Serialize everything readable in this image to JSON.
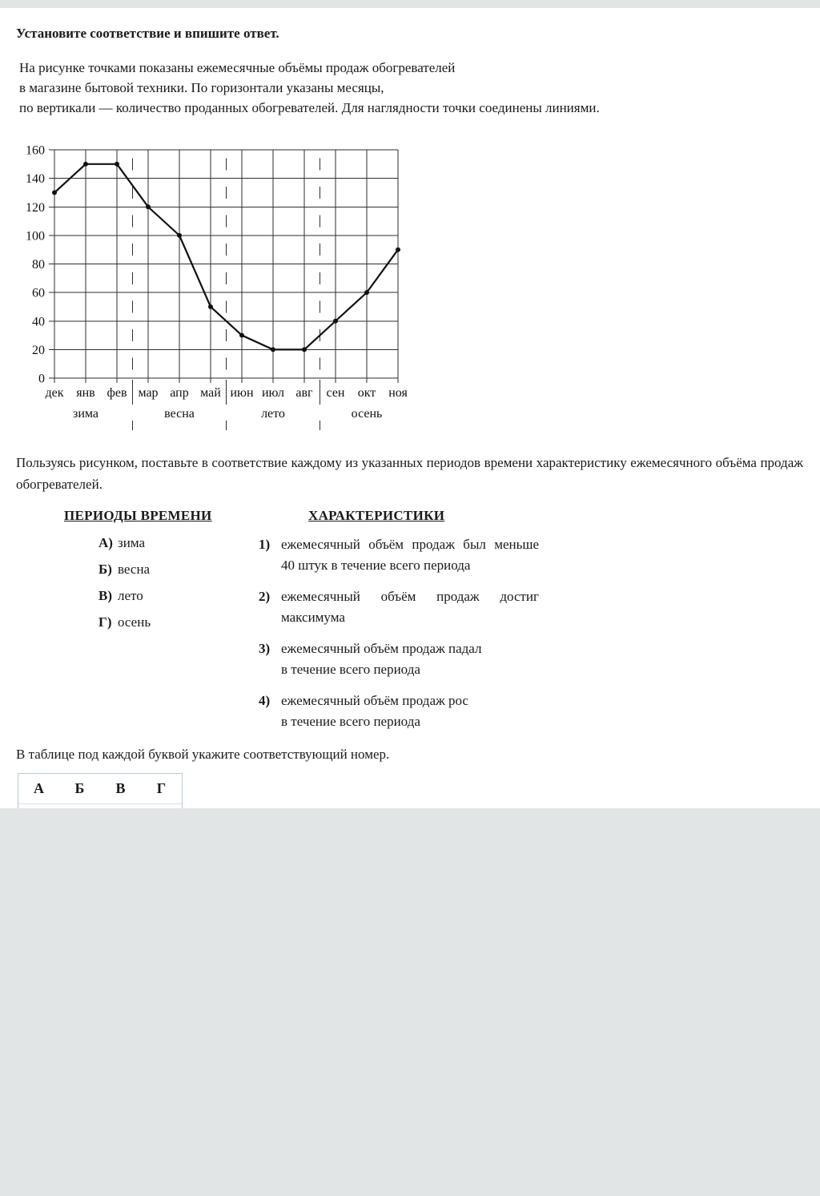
{
  "page": {
    "title": "Установите соответствие и впишите ответ.",
    "intro_lines": [
      "На рисунке точками показаны ежемесячные объёмы продаж обогревателей",
      "в магазине бытовой техники. По горизонтали указаны месяцы,",
      "по вертикали —  количество проданных обогревателей. Для наглядности точки соединены линиями."
    ],
    "task_text": "Пользуясь рисунком, поставьте в соответствие каждому из указанных периодов времени характеристику ежемесячного объёма продаж обогревателей.",
    "table_instruction": "В таблице под каждой буквой укажите соответствующий номер."
  },
  "match": {
    "left_header": "ПЕРИОДЫ ВРЕМЕНИ",
    "right_header": "ХАРАКТЕРИСТИКИ",
    "periods": [
      {
        "letter": "А)",
        "label": "зима"
      },
      {
        "letter": "Б)",
        "label": "весна"
      },
      {
        "letter": "В)",
        "label": "лето"
      },
      {
        "letter": "Г)",
        "label": "осень"
      }
    ],
    "characteristics": [
      {
        "number": "1)",
        "lines": [
          "ежемесячный объём продаж был меньше",
          "40 штук в течение всего периода"
        ]
      },
      {
        "number": "2)",
        "lines": [
          "ежемесячный объём продаж достиг",
          "максимума"
        ]
      },
      {
        "number": "3)",
        "lines": [
          "ежемесячный объём продаж падал",
          "в течение всего периода"
        ]
      },
      {
        "number": "4)",
        "lines": [
          "ежемесячный объём продаж рос",
          "в течение всего периода"
        ]
      }
    ]
  },
  "answer_table": {
    "columns": [
      "А",
      "Б",
      "В",
      "Г"
    ],
    "selects": [
      {
        "column": "А",
        "value": ""
      },
      {
        "column": "Б",
        "value": ""
      },
      {
        "column": "В",
        "value": ""
      },
      {
        "column": "Г",
        "value": ""
      }
    ]
  },
  "chart_data": {
    "type": "line",
    "title": "",
    "xlabel": "",
    "ylabel": "",
    "x": [
      "дек",
      "янв",
      "фев",
      "мар",
      "апр",
      "май",
      "июн",
      "июл",
      "авг",
      "сен",
      "окт",
      "ноя"
    ],
    "values": [
      130,
      150,
      150,
      120,
      100,
      50,
      30,
      20,
      20,
      40,
      60,
      90
    ],
    "ylim": [
      0,
      160
    ],
    "ytick_step": 20,
    "grid": true,
    "legend": "none",
    "seasons": [
      {
        "label": "зима",
        "start": 0,
        "end": 2
      },
      {
        "label": "весна",
        "start": 3,
        "end": 5
      },
      {
        "label": "лето",
        "start": 6,
        "end": 8
      },
      {
        "label": "осень",
        "start": 9,
        "end": 11
      }
    ]
  },
  "colors": {
    "accent_blue": "#3e7ef0",
    "page_background": "#e1e5e5",
    "answer_table_border": "#b5cbd2",
    "chart_ink": "#111111"
  }
}
